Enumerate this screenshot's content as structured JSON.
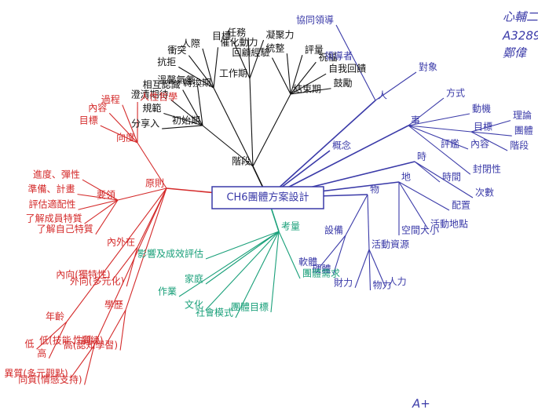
{
  "center": "CH6團體方案設計",
  "branches": [
    {
      "label": "階段",
      "color": "#111111",
      "children": [
        {
          "label": "初始期",
          "children": [
            {
              "label": "分享入"
            },
            {
              "label": "規範"
            },
            {
              "label": "澄清期待"
            },
            {
              "label": "相互認識"
            },
            {
              "label": "溫馨氣氛"
            }
          ]
        },
        {
          "label": "轉換期",
          "children": [
            {
              "label": "抗拒"
            },
            {
              "label": "衝突"
            },
            {
              "label": "人際"
            },
            {
              "label": "催化動力"
            }
          ]
        },
        {
          "label": "工作期",
          "children": [
            {
              "label": "目標"
            },
            {
              "label": "任務"
            },
            {
              "label": "凝聚力"
            }
          ]
        },
        {
          "label": "結束期",
          "children": [
            {
              "label": "回顧經驗"
            },
            {
              "label": "統整"
            },
            {
              "label": "評量"
            },
            {
              "label": "祝福"
            },
            {
              "label": "自我回饋"
            },
            {
              "label": "鼓勵"
            }
          ]
        }
      ]
    },
    {
      "label": "人",
      "color": "#3a3aa8",
      "children": [
        {
          "label": "領導者",
          "children": [
            {
              "label": "協同領導"
            }
          ]
        },
        {
          "label": "對象"
        }
      ]
    },
    {
      "label": "事",
      "color": "#3a3aa8",
      "children": [
        {
          "label": "方式"
        },
        {
          "label": "動機"
        },
        {
          "label": "目標",
          "children": [
            {
              "label": "理論"
            },
            {
              "label": "團體"
            },
            {
              "label": "階段"
            }
          ]
        },
        {
          "label": "內容"
        },
        {
          "label": "評鑑",
          "children": [
            {
              "label": "封閉性"
            }
          ]
        }
      ]
    },
    {
      "label": "時",
      "color": "#3a3aa8",
      "children": [
        {
          "label": "時間"
        },
        {
          "label": "次數"
        }
      ]
    },
    {
      "label": "地",
      "color": "#3a3aa8",
      "children": [
        {
          "label": "空間大小"
        },
        {
          "label": "活動地點"
        },
        {
          "label": "配置"
        }
      ]
    },
    {
      "label": "物",
      "color": "#3a3aa8",
      "children": [
        {
          "label": "設備",
          "children": [
            {
              "label": "硬體"
            },
            {
              "label": "軟體"
            }
          ]
        },
        {
          "label": "活動資源",
          "children": [
            {
              "label": "人力"
            },
            {
              "label": "物力"
            },
            {
              "label": "財力"
            }
          ]
        }
      ]
    },
    {
      "label": "概念",
      "color": "#3a3aa8"
    },
    {
      "label": "原則",
      "color": "#d42a2a",
      "children": [
        {
          "label": "向度",
          "children": [
            {
              "label": "目標"
            },
            {
              "label": "內容"
            },
            {
              "label": "過程"
            },
            {
              "label": "人性哲學"
            }
          ]
        },
        {
          "label": "要領",
          "children": [
            {
              "label": "了解自己特質"
            },
            {
              "label": "了解成員特質"
            },
            {
              "label": "評估適配性"
            },
            {
              "label": "準備、計畫"
            },
            {
              "label": "進度、彈性"
            }
          ]
        },
        {
          "label": "內外在",
          "children": [
            {
              "label": "外向(多元化)"
            },
            {
              "label": "內向(獨特性)"
            }
          ]
        },
        {
          "label": "學歷",
          "children": [
            {
              "label": "高(認知學習)"
            },
            {
              "label": "低(技能、訓練)"
            }
          ]
        },
        {
          "label": "年齡",
          "children": [
            {
              "label": "高"
            },
            {
              "label": "低"
            }
          ]
        },
        {
          "label": "性質",
          "children": [
            {
              "label": "同質(情感支持)"
            },
            {
              "label": "異質(多元觀點)"
            }
          ]
        }
      ]
    },
    {
      "label": "考量",
      "color": "#1aa07a",
      "children": [
        {
          "label": "影響及成效評估"
        },
        {
          "label": "作業"
        },
        {
          "label": "家庭"
        },
        {
          "label": "文化"
        },
        {
          "label": "社會模式"
        },
        {
          "label": "團體目標"
        },
        {
          "label": "團體需求"
        }
      ]
    }
  ],
  "annotations": [
    "心輔二",
    "A3289",
    "鄭偉",
    "A+"
  ]
}
